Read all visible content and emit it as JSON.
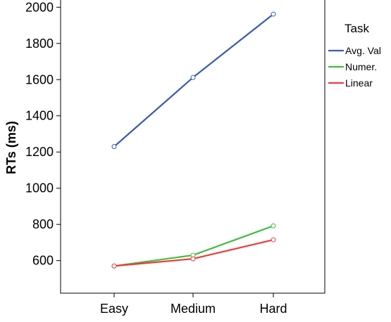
{
  "chart_data": {
    "type": "line",
    "title": "",
    "xlabel": "",
    "ylabel": "RTs (ms)",
    "categories": [
      "Easy",
      "Medium",
      "Hard"
    ],
    "ylim": [
      420,
      2040
    ],
    "yticks": [
      600,
      800,
      1000,
      1200,
      1400,
      1600,
      1800,
      2000
    ],
    "grid": false,
    "markers": "open-circle",
    "legend": {
      "title": "Task",
      "placement": "right"
    },
    "series": [
      {
        "name": "Avg. Val",
        "color": "#3a5bb5",
        "values": [
          1230,
          1612,
          1962
        ]
      },
      {
        "name": "Numer.",
        "color": "#3fbe3f",
        "values": [
          570,
          630,
          792
        ]
      },
      {
        "name": "Linear",
        "color": "#ee3b3b",
        "values": [
          570,
          610,
          715
        ]
      }
    ]
  }
}
